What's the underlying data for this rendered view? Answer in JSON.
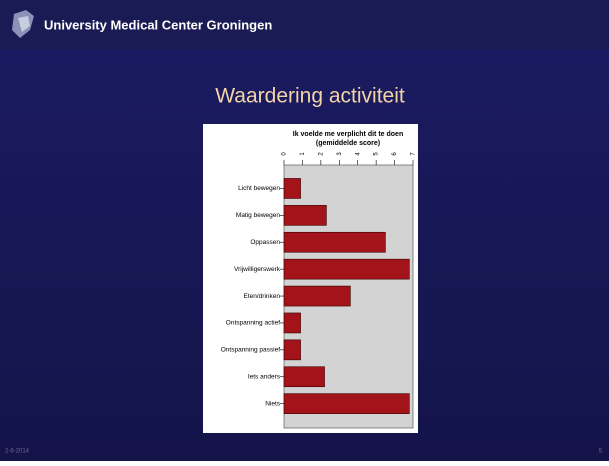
{
  "header": {
    "title": "University Medical Center Groningen"
  },
  "slide_title": "Waardering activiteit",
  "footer": {
    "date": "2-6-2014",
    "page": "5"
  },
  "chart_data": {
    "type": "barh",
    "title": "Ik voelde me verplicht dit te doen",
    "subtitle": "(gemiddelde score)",
    "categories": [
      "Licht bewegen",
      "Matig bewegen",
      "Oppassen",
      "Vrijwilligerswerk",
      "Eten/drinken",
      "Ontspanning actief",
      "Ontspanning passief",
      "Iets anders",
      "Niets"
    ],
    "values": [
      0.9,
      2.3,
      5.5,
      6.8,
      3.6,
      0.9,
      0.9,
      2.2,
      6.8
    ],
    "color": "#a3141a",
    "xlim": [
      0,
      7
    ],
    "xticks": [
      0,
      1,
      2,
      3,
      4,
      5,
      6,
      7
    ]
  }
}
